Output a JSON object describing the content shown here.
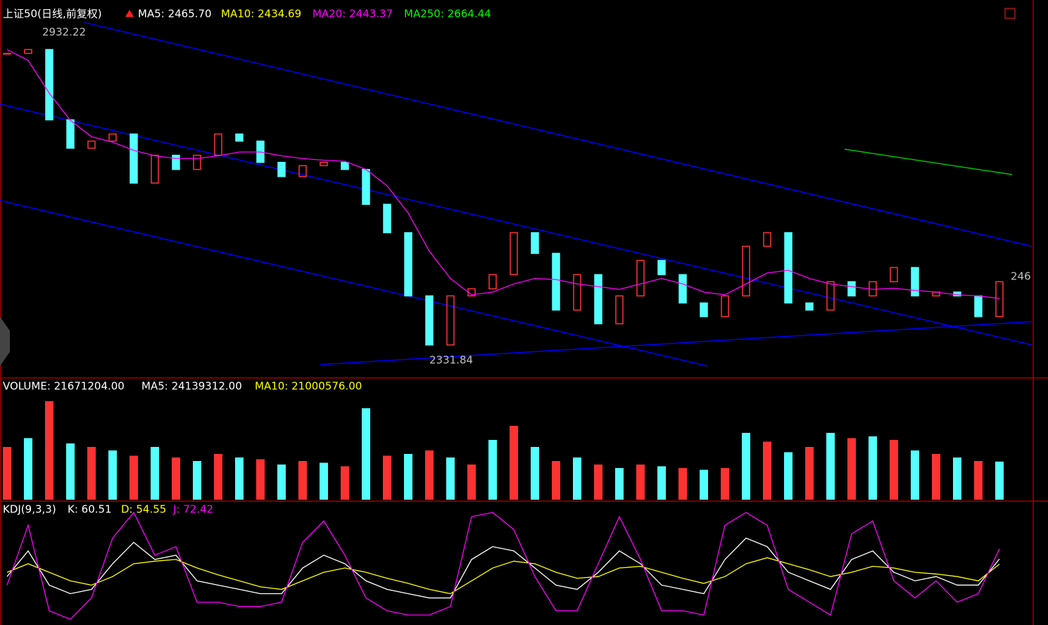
{
  "chart_data": [
    {
      "type": "candlestick",
      "header": [
        {
          "text": "上证50(日线,前复权)",
          "color": "#ffffff"
        },
        {
          "text": "MA5: 2465.70",
          "color": "#ffffff"
        },
        {
          "text": "MA10: 2434.69",
          "color": "#ffff00"
        },
        {
          "text": "MA20: 2443.37",
          "color": "#ff00ff"
        },
        {
          "text": "MA250: 2664.44",
          "color": "#00ff00"
        }
      ],
      "annotations": [
        "2932.22",
        "2331.84",
        "246"
      ],
      "ylim": [
        2300,
        2978
      ],
      "up_color": "#ff3232",
      "down_color": "#54ffff",
      "values": [
        2893,
        2900,
        2771,
        2719,
        2732,
        2745,
        2655,
        2706,
        2680,
        2706,
        2745,
        2732,
        2693,
        2667,
        2687,
        2693,
        2680,
        2616,
        2564,
        2448,
        2358,
        2448,
        2461,
        2487,
        2564,
        2526,
        2422,
        2487,
        2397,
        2448,
        2513,
        2487,
        2435,
        2410,
        2448,
        2539,
        2564,
        2435,
        2422,
        2474,
        2448,
        2474,
        2500,
        2448,
        2455,
        2448,
        2410,
        2474
      ],
      "series": [
        {
          "name": "MA20",
          "color": "#ff00ff",
          "values": [
            2900,
            2880,
            2820,
            2770,
            2740,
            2730,
            2715,
            2705,
            2700,
            2700,
            2705,
            2712,
            2712,
            2705,
            2700,
            2697,
            2695,
            2680,
            2650,
            2600,
            2530,
            2480,
            2450,
            2455,
            2470,
            2480,
            2478,
            2470,
            2465,
            2460,
            2470,
            2480,
            2470,
            2455,
            2450,
            2470,
            2490,
            2495,
            2480,
            2470,
            2465,
            2460,
            2462,
            2458,
            2455,
            2450,
            2448,
            2443.37
          ]
        }
      ]
    },
    {
      "type": "bar",
      "header": [
        {
          "text": "VOLUME: 21671204.00",
          "color": "#ffffff"
        },
        {
          "text": "MA5: 24139312.00",
          "color": "#ffffff"
        },
        {
          "text": "MA10: 21000576.00",
          "color": "#ffff00"
        }
      ],
      "ylim": [
        0,
        60000000
      ],
      "values": [
        30000000,
        35000000,
        56000000,
        32000000,
        30000000,
        28000000,
        25000000,
        30000000,
        24000000,
        22000000,
        26000000,
        24000000,
        23000000,
        20000000,
        22000000,
        21000000,
        19000000,
        52000000,
        25000000,
        26000000,
        28000000,
        24000000,
        20000000,
        34000000,
        42000000,
        30000000,
        22000000,
        24000000,
        20000000,
        18000000,
        20000000,
        19000000,
        18000000,
        17000000,
        18000000,
        38000000,
        33000000,
        27000000,
        30000000,
        38000000,
        35000000,
        36000000,
        34000000,
        28000000,
        26000000,
        24000000,
        22000000,
        21671204
      ]
    },
    {
      "type": "line",
      "header": [
        {
          "text": "KDJ(9,3,3)",
          "color": "#ffffff"
        },
        {
          "text": "K: 60.51",
          "color": "#ffffff"
        },
        {
          "text": "D: 54.55",
          "color": "#ffff00"
        },
        {
          "text": "J: 72.42",
          "color": "#ff00ff"
        }
      ],
      "ylim": [
        -15,
        120
      ],
      "series": [
        {
          "name": "K",
          "color": "#ffffff",
          "values": [
            40,
            70,
            30,
            20,
            25,
            55,
            80,
            60,
            65,
            35,
            30,
            25,
            20,
            20,
            50,
            65,
            55,
            35,
            25,
            20,
            15,
            15,
            60,
            75,
            70,
            50,
            30,
            25,
            45,
            70,
            55,
            30,
            25,
            20,
            60,
            85,
            75,
            45,
            35,
            25,
            60,
            70,
            45,
            35,
            40,
            30,
            30,
            60.51
          ]
        },
        {
          "name": "D",
          "color": "#ffff00",
          "values": [
            45,
            55,
            45,
            35,
            30,
            40,
            55,
            58,
            60,
            50,
            42,
            35,
            28,
            25,
            35,
            45,
            50,
            45,
            38,
            32,
            25,
            20,
            35,
            50,
            58,
            55,
            45,
            38,
            40,
            50,
            52,
            45,
            38,
            32,
            40,
            55,
            62,
            55,
            48,
            40,
            45,
            52,
            50,
            45,
            43,
            40,
            35,
            54.55
          ]
        },
        {
          "name": "J",
          "color": "#ff00ff",
          "values": [
            30,
            100,
            0,
            -10,
            15,
            85,
            115,
            65,
            75,
            10,
            10,
            5,
            5,
            10,
            80,
            105,
            65,
            15,
            0,
            -5,
            -5,
            5,
            110,
            115,
            95,
            40,
            0,
            0,
            55,
            110,
            60,
            0,
            0,
            -5,
            100,
            115,
            100,
            25,
            10,
            -5,
            90,
            105,
            35,
            15,
            35,
            10,
            20,
            72.42
          ]
        }
      ]
    }
  ]
}
